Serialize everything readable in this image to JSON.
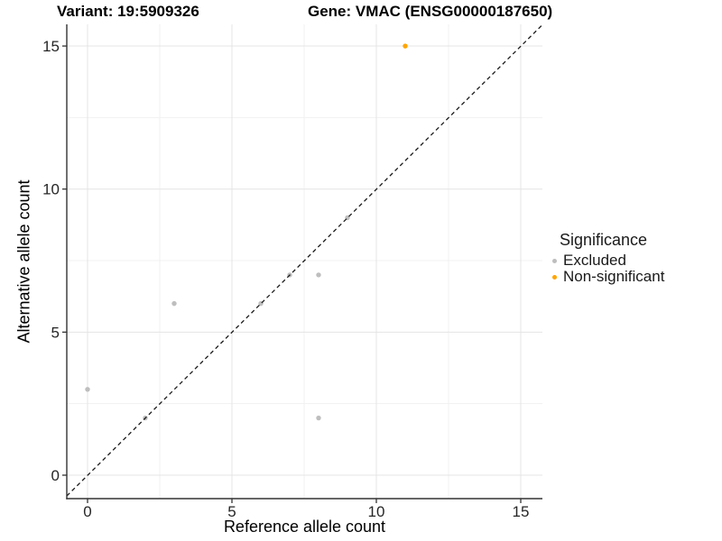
{
  "titles": {
    "variant": "Variant: 19:5909326",
    "gene": "Gene: VMAC (ENSG00000187650)"
  },
  "chart_data": {
    "type": "scatter",
    "xlabel": "Reference allele count",
    "ylabel": "Alternative allele count",
    "xlim": [
      0,
      15
    ],
    "ylim": [
      0,
      15
    ],
    "x_ticks": [
      0,
      5,
      10,
      15
    ],
    "y_ticks": [
      0,
      5,
      10,
      15
    ],
    "minor_gridlines": true,
    "grid": "on",
    "identity_line": {
      "style": "dashed",
      "slope": 1,
      "intercept": 0
    },
    "series": [
      {
        "name": "Excluded",
        "color": "#BEBEBE",
        "points": [
          [
            0,
            3
          ],
          [
            2,
            2
          ],
          [
            3,
            6
          ],
          [
            6,
            6
          ],
          [
            7,
            7
          ],
          [
            8,
            2
          ],
          [
            8,
            7
          ],
          [
            9,
            9
          ]
        ]
      },
      {
        "name": "Non-significant",
        "color": "#FFA500",
        "points": [
          [
            11,
            15
          ]
        ]
      }
    ],
    "legend": {
      "title": "Significance",
      "position": "right",
      "items": [
        {
          "label": "Excluded",
          "color": "#BEBEBE"
        },
        {
          "label": "Non-significant",
          "color": "#FFA500"
        }
      ]
    }
  },
  "colors": {
    "grid_major": "#e4e4e4",
    "grid_minor": "#f1f1f1",
    "axis_line": "#333333",
    "tick_label": "#262626",
    "dashed_line": "#1a1a1a",
    "background": "#ffffff"
  }
}
